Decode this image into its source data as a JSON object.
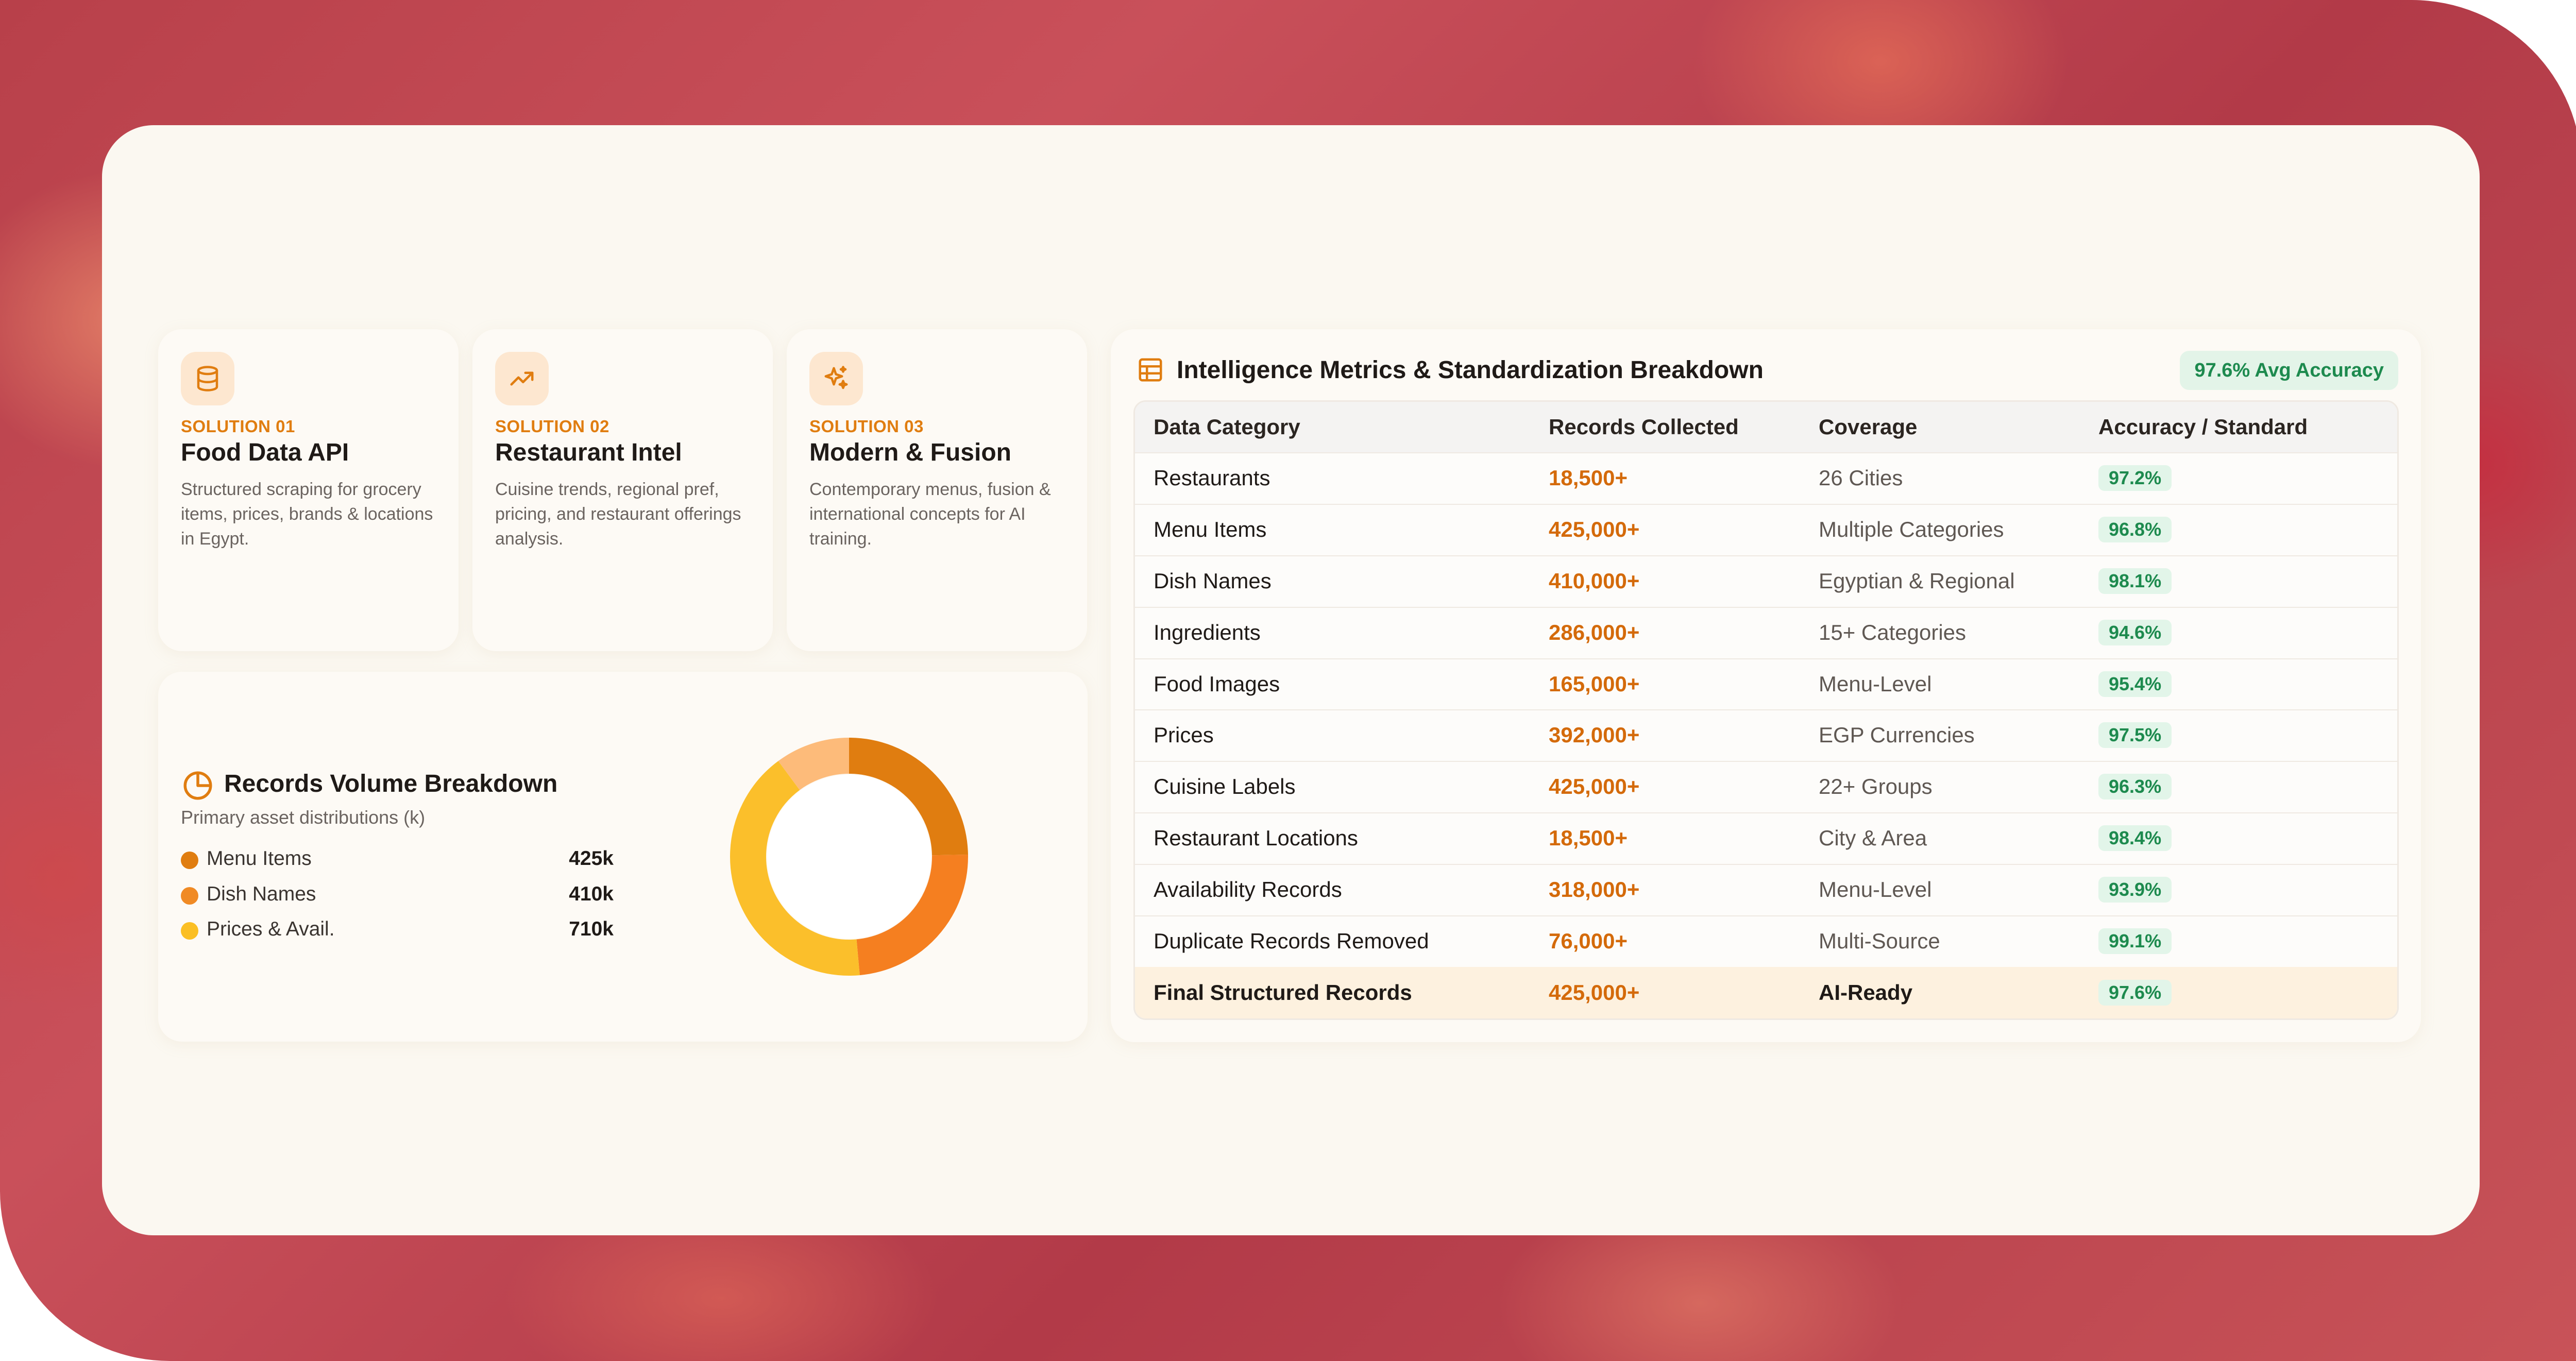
{
  "solutions": [
    {
      "kicker": "SOLUTION 01",
      "title": "Food Data API",
      "desc": "Structured scraping for grocery items, prices, brands & locations in Egypt.",
      "icon": "database-icon"
    },
    {
      "kicker": "SOLUTION 02",
      "title": "Restaurant Intel",
      "desc": "Cuisine trends, regional pref, pricing, and restaurant offerings analysis.",
      "icon": "trending-up-icon"
    },
    {
      "kicker": "SOLUTION 03",
      "title": "Modern & Fusion",
      "desc": "Contemporary menus, fusion & international concepts for AI training.",
      "icon": "sparkles-icon"
    }
  ],
  "records_volume": {
    "title": "Records Volume Breakdown",
    "subtitle": "Primary asset distributions (k)",
    "items": [
      {
        "label": "Menu Items",
        "value": "425k",
        "color": "#e07d10"
      },
      {
        "label": "Dish Names",
        "value": "410k",
        "color": "#f08a24"
      },
      {
        "label": "Prices & Avail.",
        "value": "710k",
        "color": "#fbbf24"
      }
    ]
  },
  "chart_data": {
    "type": "pie",
    "donut": true,
    "categories": [
      "Menu Items",
      "Dish Names",
      "Prices & Avail.",
      "Other"
    ],
    "values": [
      425,
      410,
      710,
      175
    ],
    "colors": [
      "#e07d10",
      "#f57f20",
      "#fbbf2b",
      "#fdbb7a"
    ]
  },
  "metrics": {
    "title": "Intelligence Metrics & Standardization Breakdown",
    "badge": "97.6% Avg Accuracy",
    "headers": [
      "Data Category",
      "Records Collected",
      "Coverage",
      "Accuracy / Standard"
    ],
    "rows": [
      {
        "category": "Restaurants",
        "records": "18,500+",
        "coverage": "26 Cities",
        "accuracy": "97.2%"
      },
      {
        "category": "Menu Items",
        "records": "425,000+",
        "coverage": "Multiple Categories",
        "accuracy": "96.8%"
      },
      {
        "category": "Dish Names",
        "records": "410,000+",
        "coverage": "Egyptian & Regional",
        "accuracy": "98.1%"
      },
      {
        "category": "Ingredients",
        "records": "286,000+",
        "coverage": "15+ Categories",
        "accuracy": "94.6%"
      },
      {
        "category": "Food Images",
        "records": "165,000+",
        "coverage": "Menu-Level",
        "accuracy": "95.4%"
      },
      {
        "category": "Prices",
        "records": "392,000+",
        "coverage": "EGP Currencies",
        "accuracy": "97.5%"
      },
      {
        "category": "Cuisine Labels",
        "records": "425,000+",
        "coverage": "22+ Groups",
        "accuracy": "96.3%"
      },
      {
        "category": "Restaurant Locations",
        "records": "18,500+",
        "coverage": "City & Area",
        "accuracy": "98.4%"
      },
      {
        "category": "Availability Records",
        "records": "318,000+",
        "coverage": "Menu-Level",
        "accuracy": "93.9%"
      },
      {
        "category": "Duplicate Records Removed",
        "records": "76,000+",
        "coverage": "Multi-Source",
        "accuracy": "99.1%"
      },
      {
        "category": "Final Structured Records",
        "records": "425,000+",
        "coverage": "AI-Ready",
        "accuracy": "97.6%"
      }
    ]
  }
}
